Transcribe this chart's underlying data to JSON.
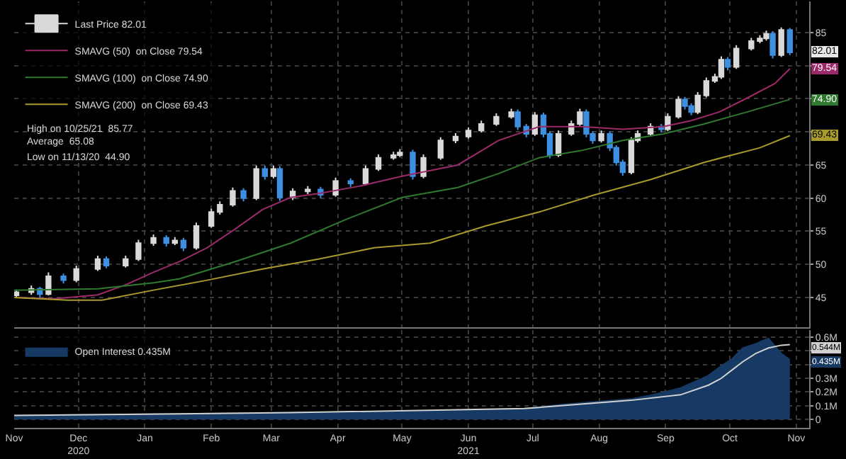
{
  "chart_data": [
    {
      "type": "candlestick",
      "legend": "top left",
      "grid": true,
      "tick_labels": "y",
      "xlim": [
        "2020-11-01",
        "2021-11-07"
      ],
      "xticks": [
        {
          "value": "2020-11-01",
          "label": null
        },
        {
          "value": "2020-12-01",
          "label": null
        },
        {
          "value": "2021-01-01",
          "label": null
        },
        {
          "value": "2021-02-01",
          "label": null
        },
        {
          "value": "2021-03-01",
          "label": null
        },
        {
          "value": "2021-04-01",
          "label": null
        },
        {
          "value": "2021-05-01",
          "label": null
        },
        {
          "value": "2021-06-01",
          "label": null
        },
        {
          "value": "2021-07-01",
          "label": null
        },
        {
          "value": "2021-08-01",
          "label": null
        },
        {
          "value": "2021-09-01",
          "label": null
        },
        {
          "value": "2021-10-01",
          "label": null
        },
        {
          "value": "2021-11-01",
          "label": null
        }
      ],
      "ylim": [
        40.5,
        89.7
      ],
      "yticks": [
        45,
        50,
        55,
        60,
        65,
        {
          "value": 70,
          "label": null
        },
        {
          "value": 75,
          "label": null
        },
        {
          "value": 80,
          "label": null
        },
        85
      ],
      "series": [
        {
          "name": "Last Price 82.01",
          "x": [
            "2020-11-02",
            "2020-11-09",
            "2020-11-13",
            "2020-11-17",
            "2020-11-24",
            "2020-11-30",
            "2020-12-10",
            "2020-12-14",
            "2020-12-23",
            "2020-12-29",
            "2021-01-05",
            "2021-01-11",
            "2021-01-15",
            "2021-01-19",
            "2021-01-25",
            "2021-02-01",
            "2021-02-05",
            "2021-02-11",
            "2021-02-16",
            "2021-02-22",
            "2021-02-26",
            "2021-03-02",
            "2021-03-05",
            "2021-03-11",
            "2021-03-18",
            "2021-03-24",
            "2021-03-31",
            "2021-04-07",
            "2021-04-14",
            "2021-04-20",
            "2021-04-27",
            "2021-04-30",
            "2021-05-06",
            "2021-05-11",
            "2021-05-19",
            "2021-05-26",
            "2021-06-01",
            "2021-06-07",
            "2021-06-14",
            "2021-06-21",
            "2021-06-24",
            "2021-06-28",
            "2021-07-02",
            "2021-07-06",
            "2021-07-09",
            "2021-07-13",
            "2021-07-19",
            "2021-07-23",
            "2021-07-26",
            "2021-07-29",
            "2021-08-02",
            "2021-08-06",
            "2021-08-09",
            "2021-08-12",
            "2021-08-16",
            "2021-08-19",
            "2021-08-25",
            "2021-08-30",
            "2021-09-02",
            "2021-09-07",
            "2021-09-10",
            "2021-09-13",
            "2021-09-16",
            "2021-09-20",
            "2021-09-24",
            "2021-09-27",
            "2021-09-30",
            "2021-10-04",
            "2021-10-11",
            "2021-10-15",
            "2021-10-18",
            "2021-10-21",
            "2021-10-25",
            "2021-10-29"
          ],
          "ohlc": [
            [
              45.3,
              46.2,
              45.0,
              45.8
            ],
            [
              45.8,
              46.8,
              45.4,
              46.3
            ],
            [
              46.3,
              46.6,
              44.9,
              45.5
            ],
            [
              45.5,
              48.8,
              45.3,
              48.2
            ],
            [
              48.2,
              48.6,
              47.1,
              47.6
            ],
            [
              47.6,
              49.8,
              47.3,
              49.3
            ],
            [
              49.3,
              51.3,
              49.0,
              50.8
            ],
            [
              50.8,
              51.2,
              49.4,
              49.8
            ],
            [
              49.8,
              51.3,
              49.5,
              50.8
            ],
            [
              50.8,
              53.7,
              50.5,
              53.2
            ],
            [
              53.2,
              54.5,
              52.8,
              54.0
            ],
            [
              54.0,
              54.4,
              52.7,
              53.2
            ],
            [
              53.2,
              54.1,
              52.9,
              53.6
            ],
            [
              53.6,
              54.0,
              52.0,
              52.5
            ],
            [
              52.5,
              56.3,
              52.2,
              55.8
            ],
            [
              55.8,
              58.4,
              55.5,
              57.9
            ],
            [
              57.9,
              59.5,
              57.5,
              59.0
            ],
            [
              59.0,
              61.6,
              58.7,
              61.1
            ],
            [
              61.1,
              61.5,
              59.5,
              60.0
            ],
            [
              60.0,
              64.9,
              59.7,
              64.4
            ],
            [
              64.4,
              64.9,
              62.8,
              63.3
            ],
            [
              63.3,
              64.9,
              63.0,
              64.4
            ],
            [
              64.4,
              64.8,
              59.6,
              60.1
            ],
            [
              60.1,
              61.5,
              59.7,
              61.0
            ],
            [
              61.0,
              61.8,
              60.6,
              61.3
            ],
            [
              61.3,
              61.7,
              60.0,
              60.5
            ],
            [
              60.5,
              63.1,
              60.2,
              62.6
            ],
            [
              62.6,
              63.0,
              61.7,
              62.2
            ],
            [
              62.2,
              64.9,
              61.9,
              64.4
            ],
            [
              64.4,
              66.6,
              64.1,
              66.1
            ],
            [
              66.1,
              67.0,
              65.8,
              66.5
            ],
            [
              66.5,
              67.4,
              66.2,
              66.9
            ],
            [
              66.9,
              67.3,
              62.8,
              63.3
            ],
            [
              63.3,
              66.6,
              63.0,
              66.1
            ],
            [
              66.1,
              69.2,
              65.8,
              68.7
            ],
            [
              68.7,
              69.8,
              68.3,
              69.3
            ],
            [
              69.3,
              70.7,
              69.0,
              70.2
            ],
            [
              70.2,
              71.7,
              69.9,
              71.2
            ],
            [
              71.2,
              72.8,
              70.9,
              72.3
            ],
            [
              72.3,
              73.5,
              72.0,
              73.0
            ],
            [
              73.0,
              73.4,
              70.3,
              70.8
            ],
            [
              70.8,
              71.2,
              69.2,
              69.7
            ],
            [
              69.7,
              73.0,
              69.4,
              72.5
            ],
            [
              72.5,
              72.9,
              69.2,
              69.7
            ],
            [
              69.7,
              70.1,
              66.0,
              66.5
            ],
            [
              66.5,
              70.2,
              66.2,
              69.7
            ],
            [
              69.7,
              71.7,
              69.4,
              71.2
            ],
            [
              71.2,
              73.5,
              70.9,
              73.0
            ],
            [
              73.0,
              73.4,
              69.2,
              69.7
            ],
            [
              69.7,
              70.1,
              68.2,
              68.7
            ],
            [
              68.7,
              70.2,
              68.4,
              69.7
            ],
            [
              69.7,
              70.1,
              67.1,
              67.6
            ],
            [
              67.6,
              68.0,
              64.9,
              65.4
            ],
            [
              65.4,
              65.8,
              63.4,
              63.9
            ],
            [
              63.9,
              69.2,
              63.6,
              68.7
            ],
            [
              68.7,
              70.2,
              68.4,
              69.7
            ],
            [
              69.7,
              71.3,
              69.4,
              70.8
            ],
            [
              70.8,
              71.2,
              69.9,
              70.4
            ],
            [
              70.4,
              72.8,
              70.1,
              72.3
            ],
            [
              72.3,
              75.4,
              72.0,
              74.9
            ],
            [
              74.9,
              75.3,
              73.4,
              73.9
            ],
            [
              73.9,
              74.3,
              72.5,
              73.0
            ],
            [
              73.0,
              76.0,
              72.7,
              75.5
            ],
            [
              75.5,
              78.2,
              75.2,
              77.7
            ],
            [
              77.7,
              78.8,
              77.4,
              78.3
            ],
            [
              78.3,
              81.4,
              78.0,
              80.9
            ],
            [
              80.9,
              81.3,
              79.3,
              79.8
            ],
            [
              79.8,
              83.1,
              79.5,
              82.6
            ],
            [
              82.6,
              84.2,
              82.3,
              83.7
            ],
            [
              83.7,
              84.6,
              83.4,
              84.1
            ],
            [
              84.1,
              85.3,
              83.8,
              84.8
            ],
            [
              84.8,
              85.2,
              81.1,
              81.6
            ],
            [
              81.6,
              85.77,
              81.3,
              85.4
            ],
            [
              85.4,
              85.7,
              81.6,
              82.01
            ]
          ],
          "colors": [
            "#d9d9d9",
            "#d9d9d9",
            "#3d8fe0",
            "#d9d9d9",
            "#3d8fe0",
            "#d9d9d9",
            "#d9d9d9",
            "#3d8fe0",
            "#d9d9d9",
            "#d9d9d9",
            "#d9d9d9",
            "#3d8fe0",
            "#d9d9d9",
            "#3d8fe0",
            "#d9d9d9",
            "#d9d9d9",
            "#d9d9d9",
            "#d9d9d9",
            "#3d8fe0",
            "#d9d9d9",
            "#3d8fe0",
            "#d9d9d9",
            "#3d8fe0",
            "#d9d9d9",
            "#d9d9d9",
            "#3d8fe0",
            "#d9d9d9",
            "#3d8fe0",
            "#d9d9d9",
            "#d9d9d9",
            "#d9d9d9",
            "#d9d9d9",
            "#3d8fe0",
            "#d9d9d9",
            "#d9d9d9",
            "#d9d9d9",
            "#d9d9d9",
            "#d9d9d9",
            "#d9d9d9",
            "#d9d9d9",
            "#3d8fe0",
            "#3d8fe0",
            "#d9d9d9",
            "#3d8fe0",
            "#3d8fe0",
            "#d9d9d9",
            "#d9d9d9",
            "#d9d9d9",
            "#3d8fe0",
            "#3d8fe0",
            "#d9d9d9",
            "#3d8fe0",
            "#3d8fe0",
            "#3d8fe0",
            "#d9d9d9",
            "#d9d9d9",
            "#d9d9d9",
            "#3d8fe0",
            "#d9d9d9",
            "#d9d9d9",
            "#3d8fe0",
            "#3d8fe0",
            "#d9d9d9",
            "#d9d9d9",
            "#d9d9d9",
            "#d9d9d9",
            "#3d8fe0",
            "#d9d9d9",
            "#d9d9d9",
            "#d9d9d9",
            "#d9d9d9",
            "#3d8fe0",
            "#d9d9d9",
            "#3d8fe0"
          ]
        },
        {
          "type": "line",
          "name": "SMAVG (50)  on Close 79.54",
          "color": "#9c2a6a",
          "x": [
            "2020-11-01",
            "2020-11-20",
            "2020-12-10",
            "2020-12-23",
            "2021-01-05",
            "2021-01-17",
            "2021-01-30",
            "2021-02-12",
            "2021-02-25",
            "2021-03-10",
            "2021-03-23",
            "2021-04-11",
            "2021-05-01",
            "2021-05-27",
            "2021-06-15",
            "2021-07-04",
            "2021-07-24",
            "2021-08-12",
            "2021-08-31",
            "2021-09-13",
            "2021-09-26",
            "2021-10-09",
            "2021-10-22",
            "2021-10-29"
          ],
          "values": [
            45.0,
            44.8,
            45.4,
            46.9,
            48.8,
            50.4,
            52.5,
            55.3,
            58.3,
            60.1,
            60.7,
            61.8,
            63.3,
            65.0,
            68.7,
            70.8,
            70.8,
            70.4,
            70.8,
            71.7,
            73.0,
            75.1,
            77.3,
            79.54
          ]
        },
        {
          "type": "line",
          "name": "SMAVG (100)  on Close 74.90",
          "color": "#2f7a2f",
          "x": [
            "2020-11-01",
            "2020-12-10",
            "2021-01-05",
            "2021-01-17",
            "2021-02-12",
            "2021-03-10",
            "2021-04-05",
            "2021-05-01",
            "2021-05-27",
            "2021-06-15",
            "2021-07-04",
            "2021-07-24",
            "2021-08-12",
            "2021-08-31",
            "2021-09-19",
            "2021-10-09",
            "2021-10-29"
          ],
          "values": [
            46.1,
            46.3,
            47.2,
            47.8,
            50.4,
            53.2,
            56.8,
            60.1,
            61.6,
            63.7,
            66.1,
            67.2,
            68.7,
            69.7,
            71.2,
            73.0,
            74.9
          ]
        },
        {
          "type": "line",
          "name": "SMAVG (200)  on Close 69.43",
          "color": "#a89a2c",
          "x": [
            "2020-11-01",
            "2020-11-26",
            "2020-12-12",
            "2021-01-05",
            "2021-01-30",
            "2021-02-25",
            "2021-03-23",
            "2021-04-18",
            "2021-05-14",
            "2021-06-09",
            "2021-07-04",
            "2021-07-30",
            "2021-08-25",
            "2021-09-19",
            "2021-10-15",
            "2021-10-29"
          ],
          "values": [
            45.0,
            44.6,
            44.6,
            46.1,
            47.6,
            49.3,
            50.8,
            52.5,
            53.2,
            55.8,
            57.9,
            60.5,
            62.8,
            65.4,
            67.6,
            69.43
          ]
        }
      ],
      "annotations": [
        "High on 10/25/21  85.77",
        "Average  65.08",
        "Low on 11/13/20  44.90",
        {
          "text": "82.01",
          "x": "2021-10-29",
          "y": 82.01
        },
        {
          "text": "79.54",
          "x": "2021-10-29",
          "y": 79.54
        },
        {
          "text": "74.90",
          "x": "2021-10-29",
          "y": 74.9
        },
        {
          "text": "69.43",
          "x": "2021-10-29",
          "y": 69.43
        }
      ]
    },
    {
      "type": "area",
      "legend": "top left",
      "grid": true,
      "xlim": [
        "2020-11-01",
        "2021-11-07"
      ],
      "xticks": [
        {
          "value": "2020-11-01",
          "label": "Nov"
        },
        {
          "value": "2020-12-01",
          "label": "Dec\n2020"
        },
        {
          "value": "2021-01-01",
          "label": "Jan"
        },
        {
          "value": "2021-02-01",
          "label": "Feb"
        },
        {
          "value": "2021-03-01",
          "label": "Mar"
        },
        {
          "value": "2021-04-01",
          "label": "Apr"
        },
        {
          "value": "2021-05-01",
          "label": "May"
        },
        {
          "value": "2021-06-01",
          "label": "Jun\n2021"
        },
        {
          "value": "2021-07-01",
          "label": "Jul"
        },
        {
          "value": "2021-08-01",
          "label": "Aug"
        },
        {
          "value": "2021-09-01",
          "label": "Sep"
        },
        {
          "value": "2021-10-01",
          "label": "Oct"
        },
        {
          "value": "2021-11-01",
          "label": "Nov"
        }
      ],
      "ylim": [
        -0.06,
        0.65
      ],
      "yticks": [
        0,
        {
          "value": 0.1,
          "label": "0.1M"
        },
        {
          "value": 0.2,
          "label": "0.2M"
        },
        {
          "value": 0.3,
          "label": "0.3M"
        },
        {
          "value": 0.4,
          "label": null
        },
        {
          "value": 0.5,
          "label": null
        },
        {
          "value": 0.6,
          "label": "0.6M"
        }
      ],
      "series": [
        {
          "name": "Open Interest 0.435M",
          "color": "#163a63",
          "x": [
            "2020-11-01",
            "2021-01-05",
            "2021-03-10",
            "2021-05-13",
            "2021-06-01",
            "2021-06-27",
            "2021-07-15",
            "2021-07-31",
            "2021-08-16",
            "2021-08-26",
            "2021-09-08",
            "2021-09-21",
            "2021-09-27",
            "2021-10-02",
            "2021-10-07",
            "2021-10-13",
            "2021-10-16",
            "2021-10-19",
            "2021-10-25",
            "2021-10-29"
          ],
          "values": [
            0.03,
            0.04,
            0.05,
            0.06,
            0.07,
            0.08,
            0.11,
            0.13,
            0.15,
            0.18,
            0.23,
            0.32,
            0.39,
            0.44,
            0.52,
            0.55,
            0.57,
            0.59,
            0.48,
            0.435
          ]
        },
        {
          "type": "line",
          "color": "#d0d0d0",
          "x": [
            "2020-11-01",
            "2021-03-10",
            "2021-06-27",
            "2021-08-16",
            "2021-09-08",
            "2021-09-21",
            "2021-09-27",
            "2021-10-02",
            "2021-10-07",
            "2021-10-13",
            "2021-10-19",
            "2021-10-25",
            "2021-10-29"
          ],
          "values": [
            0.03,
            0.05,
            0.08,
            0.14,
            0.18,
            0.25,
            0.3,
            0.36,
            0.42,
            0.48,
            0.52,
            0.54,
            0.544
          ]
        }
      ],
      "annotations": [
        {
          "text": "0.544M",
          "x": "2021-10-29",
          "y": 0.544
        },
        {
          "text": "0.435M",
          "x": "2021-10-29",
          "y": 0.435
        }
      ]
    }
  ]
}
